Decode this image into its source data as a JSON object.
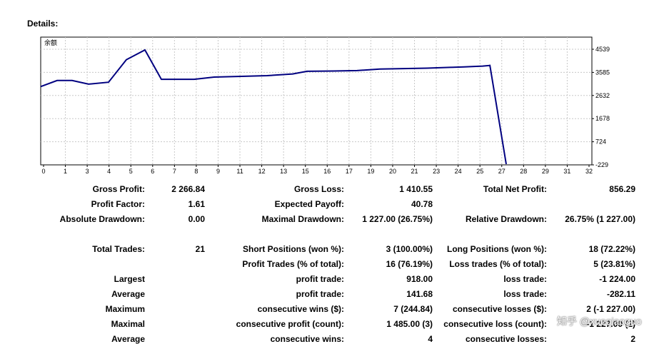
{
  "title": "Details:",
  "chart_data": {
    "type": "line",
    "legend_label": "余额",
    "x_ticks": [
      0,
      1,
      3,
      4,
      5,
      6,
      7,
      8,
      9,
      11,
      12,
      13,
      15,
      16,
      17,
      19,
      20,
      21,
      23,
      24,
      25,
      27,
      28,
      29,
      31,
      32
    ],
    "y_ticks": [
      4539,
      3585,
      2632,
      1678,
      724,
      -229
    ],
    "ylim": [
      -229,
      4539
    ],
    "grid": true,
    "line_color": "#000080",
    "series": [
      {
        "x": [
          0,
          1,
          2,
          3,
          4,
          5,
          6,
          7,
          8,
          9,
          10,
          11,
          12,
          13,
          14,
          15,
          16,
          17,
          18,
          19,
          20,
          21,
          22,
          23,
          24,
          25
        ],
        "values": [
          3000,
          3250,
          3250,
          3100,
          3180,
          4110,
          4510,
          3300,
          3300,
          3390,
          3420,
          3450,
          3520,
          3630,
          3640,
          3660,
          3720,
          3740,
          3760,
          3790,
          3810,
          3830,
          3845,
          3870,
          3900,
          -200
        ]
      }
    ]
  },
  "stats": {
    "gross_profit_label": "Gross Profit:",
    "gross_profit": "2 266.84",
    "gross_loss_label": "Gross Loss:",
    "gross_loss": "1 410.55",
    "total_net_profit_label": "Total Net Profit:",
    "total_net_profit": "856.29",
    "profit_factor_label": "Profit Factor:",
    "profit_factor": "1.61",
    "expected_payoff_label": "Expected Payoff:",
    "expected_payoff": "40.78",
    "absolute_drawdown_label": "Absolute Drawdown:",
    "absolute_drawdown": "0.00",
    "maximal_drawdown_label": "Maximal Drawdown:",
    "maximal_drawdown": "1 227.00 (26.75%)",
    "relative_drawdown_label": "Relative Drawdown:",
    "relative_drawdown": "26.75% (1 227.00)",
    "total_trades_label": "Total Trades:",
    "total_trades": "21",
    "short_positions_label": "Short Positions (won %):",
    "short_positions": "3 (100.00%)",
    "long_positions_label": "Long Positions (won %):",
    "long_positions": "18 (72.22%)",
    "profit_trades_label": "Profit Trades (% of total):",
    "profit_trades": "16 (76.19%)",
    "loss_trades_label": "Loss trades (% of total):",
    "loss_trades": "5 (23.81%)",
    "largest_label": "Largest",
    "largest_profit_label": "profit trade:",
    "largest_profit": "918.00",
    "largest_loss_label": "loss trade:",
    "largest_loss": "-1 224.00",
    "average_label": "Average",
    "average_profit_label": "profit trade:",
    "average_profit": "141.68",
    "average_loss_label": "loss trade:",
    "average_loss": "-282.11",
    "maximum_label": "Maximum",
    "max_cons_wins_label": "consecutive wins ($):",
    "max_cons_wins": "7 (244.84)",
    "max_cons_losses_label": "consecutive losses ($):",
    "max_cons_losses": "2 (-1 227.00)",
    "maximal_label": "Maximal",
    "maximal_cons_profit_label": "consecutive profit (count):",
    "maximal_cons_profit": "1 485.00 (3)",
    "maximal_cons_loss_label": "consecutive loss (count):",
    "maximal_cons_loss": "-1 227.00 (2)",
    "average2_label": "Average",
    "avg_cons_wins_label": "consecutive wins:",
    "avg_cons_wins": "4",
    "avg_cons_losses_label": "consecutive losses:",
    "avg_cons_losses": "2"
  },
  "watermark": "知乎 @xueqiaoguo"
}
